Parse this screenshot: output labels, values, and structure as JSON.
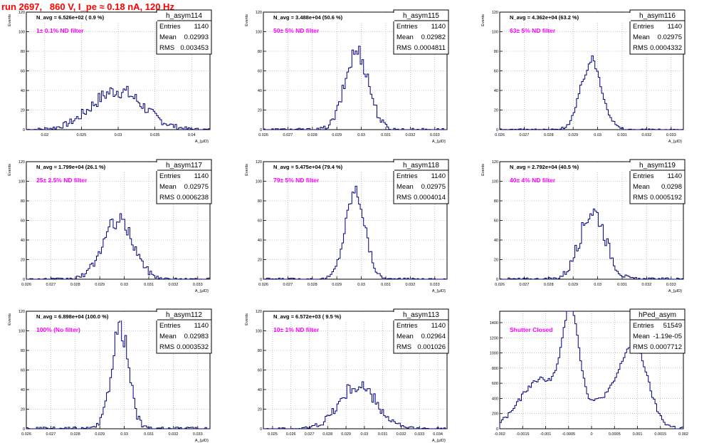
{
  "page_title": "run 2697,   860 V, I_pe ≈ 0.18 nA, 120 Hz",
  "colors": {
    "title": "#ff0000",
    "annotation": "#ff00ff",
    "histogram": "#00007f",
    "grid": "#999999"
  },
  "chart_data": [
    {
      "type": "area",
      "name": "h_asym114",
      "stats": {
        "entries": "1140",
        "mean": "0.02993",
        "rms": "0.003453"
      },
      "avg_label": "N_avg = 6.526e+02 ( 0.9 %)",
      "annotation": "1± 0.1% ND filter",
      "ylabel": "Events",
      "xlabel": "A_{μID}",
      "xlim": [
        0.0175,
        0.0425
      ],
      "ylim": [
        0,
        120
      ],
      "xticks": [
        "0.02",
        "0.025",
        "0.03",
        "0.035",
        "0.04"
      ],
      "xtick_values": [
        0.02,
        0.025,
        0.03,
        0.035,
        0.04
      ],
      "yticks": [
        "0",
        "20",
        "40",
        "60",
        "80",
        "100",
        "120"
      ],
      "ytick_values": [
        0,
        20,
        40,
        60,
        80,
        100,
        120
      ],
      "curve": {
        "kind": "gauss",
        "mean": 0.0299,
        "sigma": 0.0035,
        "peak": 40,
        "noise": 8
      }
    },
    {
      "type": "area",
      "name": "h_asym115",
      "stats": {
        "entries": "1140",
        "mean": "0.02982",
        "rms": "0.0004811"
      },
      "avg_label": "N_avg = 3.488e+04 (50.6 %)",
      "annotation": "50± 5% ND filter",
      "ylabel": "Events",
      "xlabel": "A_{μID}",
      "xlim": [
        0.026,
        0.0335
      ],
      "ylim": [
        0,
        120
      ],
      "xticks": [
        "0.026",
        "0.027",
        "0.028",
        "0.029",
        "0.03",
        "0.031",
        "0.032",
        "0.033"
      ],
      "xtick_values": [
        0.026,
        0.027,
        0.028,
        0.029,
        0.03,
        0.031,
        0.032,
        0.033
      ],
      "yticks": [
        "0",
        "20",
        "40",
        "60",
        "80",
        "100",
        "120"
      ],
      "ytick_values": [
        0,
        20,
        40,
        60,
        80,
        100,
        120
      ],
      "curve": {
        "kind": "gauss",
        "mean": 0.02982,
        "sigma": 0.00048,
        "peak": 80,
        "noise": 10
      }
    },
    {
      "type": "area",
      "name": "h_asym116",
      "stats": {
        "entries": "1140",
        "mean": "0.02975",
        "rms": "0.0004332"
      },
      "avg_label": "N_avg = 4.362e+04 (63.2 %)",
      "annotation": "63± 5% ND filter",
      "ylabel": "Events",
      "xlabel": "A_{μID}",
      "xlim": [
        0.026,
        0.0335
      ],
      "ylim": [
        0,
        120
      ],
      "xticks": [
        "0.026",
        "0.027",
        "0.028",
        "0.029",
        "0.03",
        "0.031",
        "0.032",
        "0.033"
      ],
      "xtick_values": [
        0.026,
        0.027,
        0.028,
        0.029,
        0.03,
        0.031,
        0.032,
        0.033
      ],
      "yticks": [
        "0",
        "20",
        "40",
        "60",
        "80",
        "100",
        "120"
      ],
      "ytick_values": [
        0,
        20,
        40,
        60,
        80,
        100,
        120
      ],
      "curve": {
        "kind": "gauss",
        "mean": 0.02975,
        "sigma": 0.00043,
        "peak": 70,
        "noise": 6
      }
    },
    {
      "type": "area",
      "name": "h_asym117",
      "stats": {
        "entries": "1140",
        "mean": "0.02975",
        "rms": "0.0006238"
      },
      "avg_label": "N_avg = 1.799e+04 (26.1 %)",
      "annotation": "25± 2.5% ND filter",
      "ylabel": "Events",
      "xlabel": "A_{μID}",
      "xlim": [
        0.026,
        0.0335
      ],
      "ylim": [
        0,
        120
      ],
      "xticks": [
        "0.026",
        "0.027",
        "0.028",
        "0.029",
        "0.03",
        "0.031",
        "0.032",
        "0.033"
      ],
      "xtick_values": [
        0.026,
        0.027,
        0.028,
        0.029,
        0.03,
        0.031,
        0.032,
        0.033
      ],
      "yticks": [
        "0",
        "20",
        "40",
        "60",
        "80",
        "100",
        "120"
      ],
      "ytick_values": [
        0,
        20,
        40,
        60,
        80,
        100,
        120
      ],
      "curve": {
        "kind": "gauss",
        "mean": 0.02975,
        "sigma": 0.00062,
        "peak": 60,
        "noise": 8
      }
    },
    {
      "type": "area",
      "name": "h_asym118",
      "stats": {
        "entries": "1140",
        "mean": "0.02975",
        "rms": "0.0004014"
      },
      "avg_label": "N_avg = 5.475e+04 (79.4 %)",
      "annotation": "79± 5% ND filter",
      "ylabel": "Events",
      "xlabel": "A_{μID}",
      "xlim": [
        0.026,
        0.0335
      ],
      "ylim": [
        0,
        120
      ],
      "xticks": [
        "0.026",
        "0.027",
        "0.028",
        "0.029",
        "0.03",
        "0.031",
        "0.032",
        "0.033"
      ],
      "xtick_values": [
        0.026,
        0.027,
        0.028,
        0.029,
        0.03,
        0.031,
        0.032,
        0.033
      ],
      "yticks": [
        "0",
        "20",
        "40",
        "60",
        "80",
        "100",
        "120"
      ],
      "ytick_values": [
        0,
        20,
        40,
        60,
        80,
        100,
        120
      ],
      "curve": {
        "kind": "gauss",
        "mean": 0.02975,
        "sigma": 0.0004,
        "peak": 90,
        "noise": 8
      }
    },
    {
      "type": "area",
      "name": "h_asym119",
      "stats": {
        "entries": "1140",
        "mean": "0.0298",
        "rms": "0.0005192"
      },
      "avg_label": "N_avg = 2.792e+04 (40.5 %)",
      "annotation": "40± 4% ND filter",
      "ylabel": "Events",
      "xlabel": "A_{μID}",
      "xlim": [
        0.026,
        0.0335
      ],
      "ylim": [
        0,
        120
      ],
      "xticks": [
        "0.026",
        "0.027",
        "0.028",
        "0.029",
        "0.03",
        "0.031",
        "0.032",
        "0.033"
      ],
      "xtick_values": [
        0.026,
        0.027,
        0.028,
        0.029,
        0.03,
        0.031,
        0.032,
        0.033
      ],
      "yticks": [
        "0",
        "20",
        "40",
        "60",
        "80",
        "100",
        "120"
      ],
      "ytick_values": [
        0,
        20,
        40,
        60,
        80,
        100,
        120
      ],
      "curve": {
        "kind": "gauss",
        "mean": 0.0298,
        "sigma": 0.00052,
        "peak": 70,
        "noise": 10
      }
    },
    {
      "type": "area",
      "name": "h_asym112",
      "stats": {
        "entries": "1140",
        "mean": "0.02983",
        "rms": "0.0003532"
      },
      "avg_label": "N_avg = 6.898e+04 (100.0 %)",
      "annotation": "100% (No filter)",
      "ylabel": "Events",
      "xlabel": "A_{μID}",
      "xlim": [
        0.026,
        0.0335
      ],
      "ylim": [
        0,
        120
      ],
      "xticks": [
        "0.026",
        "0.027",
        "0.028",
        "0.029",
        "0.03",
        "0.031",
        "0.032",
        "0.033"
      ],
      "xtick_values": [
        0.026,
        0.027,
        0.028,
        0.029,
        0.03,
        0.031,
        0.032,
        0.033
      ],
      "yticks": [
        "0",
        "20",
        "40",
        "60",
        "80",
        "100",
        "120"
      ],
      "ytick_values": [
        0,
        20,
        40,
        60,
        80,
        100,
        120
      ],
      "curve": {
        "kind": "gauss",
        "mean": 0.02983,
        "sigma": 0.00035,
        "peak": 105,
        "noise": 12
      }
    },
    {
      "type": "area",
      "name": "h_asym113",
      "stats": {
        "entries": "1140",
        "mean": "0.02964",
        "rms": "0.001026"
      },
      "avg_label": "N_avg = 6.572e+03 ( 9.5 %)",
      "annotation": "10± 1% ND filter",
      "ylabel": "Events",
      "xlabel": "A_{μID}",
      "xlim": [
        0.0245,
        0.0345
      ],
      "ylim": [
        0,
        120
      ],
      "xticks": [
        "0.025",
        "0.026",
        "0.027",
        "0.028",
        "0.029",
        "0.03",
        "0.031",
        "0.032",
        "0.033",
        "0.034"
      ],
      "xtick_values": [
        0.025,
        0.026,
        0.027,
        0.028,
        0.029,
        0.03,
        0.031,
        0.032,
        0.033,
        0.034
      ],
      "yticks": [
        "0",
        "20",
        "40",
        "60",
        "80",
        "100",
        "120"
      ],
      "ytick_values": [
        0,
        20,
        40,
        60,
        80,
        100,
        120
      ],
      "curve": {
        "kind": "gauss",
        "mean": 0.02964,
        "sigma": 0.001,
        "peak": 44,
        "noise": 8
      }
    },
    {
      "type": "area",
      "name": "hPed_asym",
      "stats": {
        "entries": "51549",
        "mean": "-1.19e-05",
        "rms": "0.0007712"
      },
      "avg_label": "",
      "annotation": "Shutter Closed",
      "ylabel": "",
      "xlabel": "",
      "xlim": [
        -0.002,
        0.002
      ],
      "ylim": [
        0,
        1550
      ],
      "xticks": [
        "-0.002",
        "-0.0015",
        "-0.001",
        "-0.0005",
        "0",
        "0.0005",
        "0.001",
        "0.0015",
        "0.002"
      ],
      "xtick_values": [
        -0.002,
        -0.0015,
        -0.001,
        -0.0005,
        0,
        0.0005,
        0.001,
        0.0015,
        0.002
      ],
      "yticks": [
        "0",
        "200",
        "400",
        "600",
        "800",
        "1000",
        "1200",
        "1400"
      ],
      "ytick_values": [
        0,
        200,
        400,
        600,
        800,
        1000,
        1200,
        1400
      ],
      "curve": {
        "kind": "ped"
      }
    }
  ]
}
